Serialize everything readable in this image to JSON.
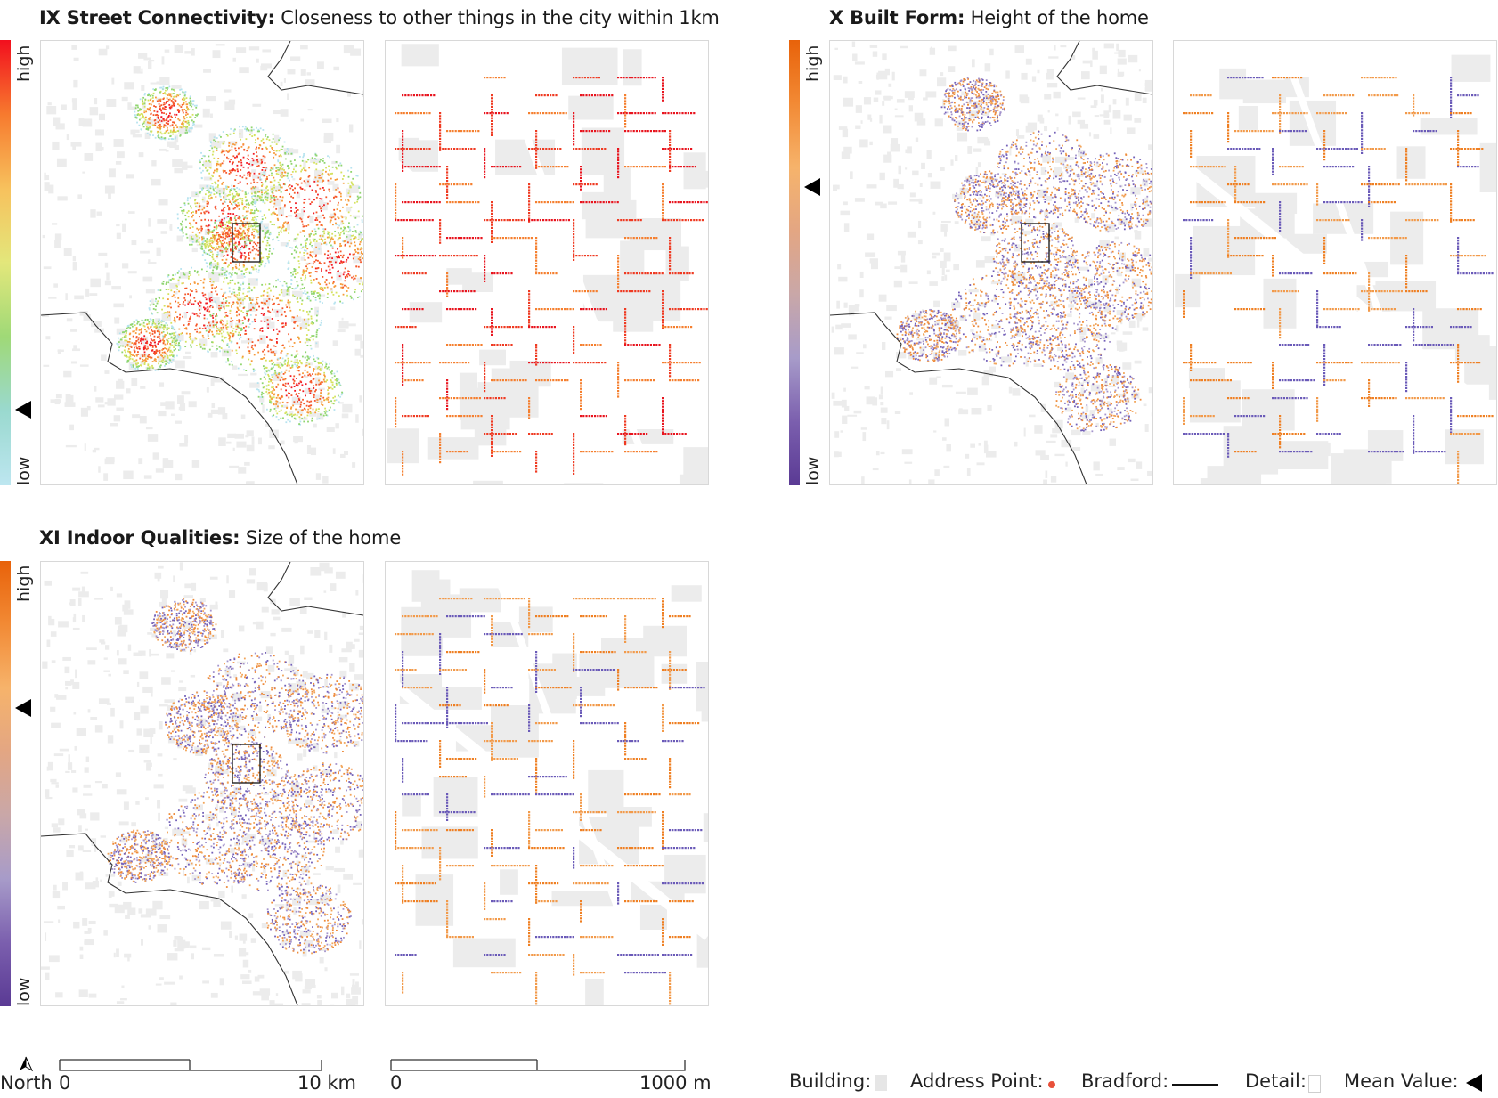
{
  "panels": [
    {
      "bold": "IX Street Connectivity:",
      "rest": " Closeness to other things in the city within 1km",
      "high": "high",
      "low": "low",
      "ramp": [
        "#f20f1e",
        "#f77a2e",
        "#f7c15d",
        "#e3e77b",
        "#9fd977",
        "#9ad9cf",
        "#bde6f0"
      ],
      "overview_colors": [
        "#f21a23",
        "#f5582b",
        "#f79a3a",
        "#d5e25e",
        "#8fd56e",
        "#b6e3ef"
      ],
      "detail_colors": [
        "#e8141e",
        "#ef3a22",
        "#f57f2f"
      ],
      "mean_position": 0.83
    },
    {
      "bold": "X Built Form:",
      "rest": " Height of the home",
      "high": "high",
      "low": "low",
      "ramp": [
        "#e8620a",
        "#f28a35",
        "#f6b36b",
        "#e3a683",
        "#c9a7a8",
        "#a79bc9",
        "#7b5fae",
        "#5a3a94"
      ],
      "overview_colors": [
        "#ee8a3a",
        "#f2a55a",
        "#a494cc",
        "#7360b8"
      ],
      "detail_colors": [
        "#ef7f22",
        "#f29a4a",
        "#6a5ab8"
      ],
      "mean_position": 0.33
    },
    {
      "bold": "XI Indoor Qualities:",
      "rest": " Size of the home",
      "high": "high",
      "low": "low",
      "ramp": [
        "#e8620a",
        "#f28a35",
        "#f6b36b",
        "#e3a683",
        "#c9a7a8",
        "#a79bc9",
        "#7b5fae",
        "#5a3a94"
      ],
      "overview_colors": [
        "#ee8a3a",
        "#f2a55a",
        "#a494cc",
        "#7360b8"
      ],
      "detail_colors": [
        "#ef7f22",
        "#f29a4a",
        "#6a5ab8"
      ],
      "mean_position": 0.33
    }
  ],
  "scalebar": {
    "north": "North",
    "city_start": "0",
    "city_end": "10 km",
    "detail_start": "0",
    "detail_end": "1000 m"
  },
  "legend": {
    "building": "Building:",
    "address_point": "Address Point:",
    "bradford": "Bradford:",
    "detail": "Detail:",
    "mean_value": "Mean Value:",
    "building_color": "#e6e6e6",
    "point_color": "#e8503a"
  }
}
